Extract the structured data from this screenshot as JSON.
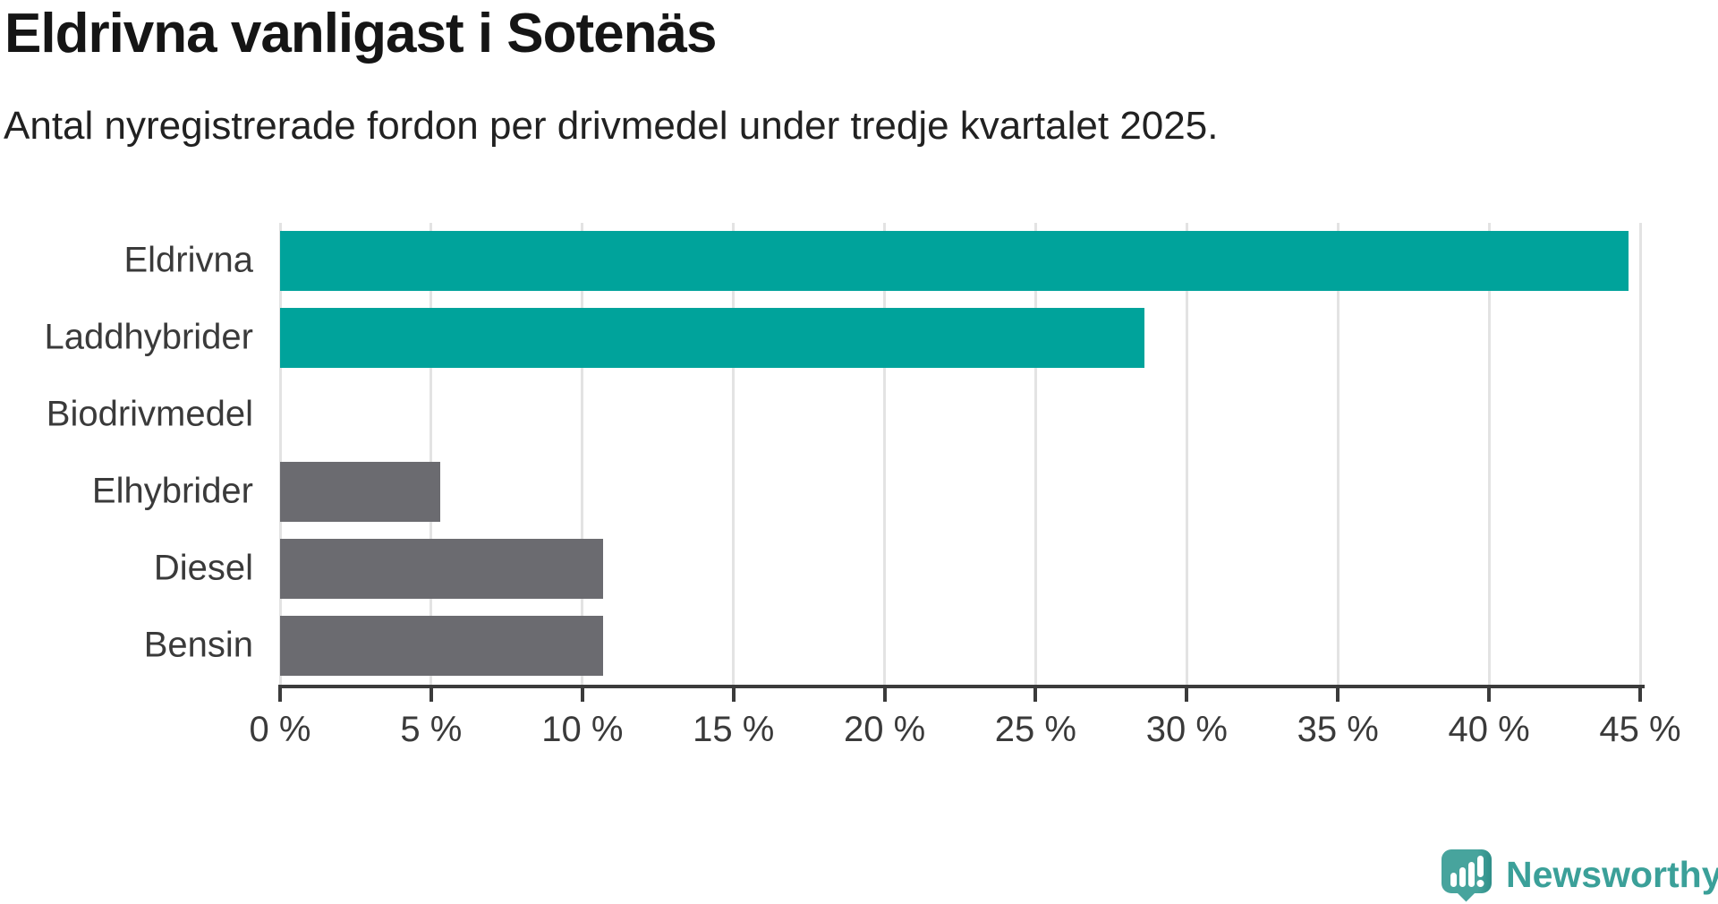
{
  "header": {
    "title": "Eldrivna vanligast i Sotenäs",
    "subtitle": "Antal nyregistrerade fordon per drivmedel under tredje kvartalet 2025."
  },
  "chart_data": {
    "type": "bar",
    "orientation": "horizontal",
    "title": "Eldrivna vanligast i Sotenäs",
    "subtitle": "Antal nyregistrerade fordon per drivmedel under tredje kvartalet 2025.",
    "categories": [
      "Eldrivna",
      "Laddhybrider",
      "Biodrivmedel",
      "Elhybrider",
      "Diesel",
      "Bensin"
    ],
    "values": [
      44.6,
      28.6,
      0,
      5.3,
      10.7,
      10.7
    ],
    "unit": "%",
    "xlabel": "",
    "ylabel": "",
    "xlim": [
      0,
      45
    ],
    "x_ticks": [
      0,
      5,
      10,
      15,
      20,
      25,
      30,
      35,
      40,
      45
    ],
    "x_tick_labels": [
      "0 %",
      "5 %",
      "10 %",
      "15 %",
      "20 %",
      "25 %",
      "30 %",
      "35 %",
      "40 %",
      "45 %"
    ],
    "bar_colors": [
      "#00a39b",
      "#00a39b",
      "#6b6b70",
      "#6b6b70",
      "#6b6b70",
      "#6b6b70"
    ],
    "grid": "vertical",
    "legend": "none",
    "colors": {
      "highlight": "#00a39b",
      "default": "#6b6b70",
      "gridline": "#e3e3e3",
      "axis": "#3b3b3b",
      "text": "#3a3a3a"
    }
  },
  "footer": {
    "brand": "Newsworthy",
    "brand_color": "#3ba099",
    "logo_icon": "speech-bubble-bar-chart-icon"
  }
}
